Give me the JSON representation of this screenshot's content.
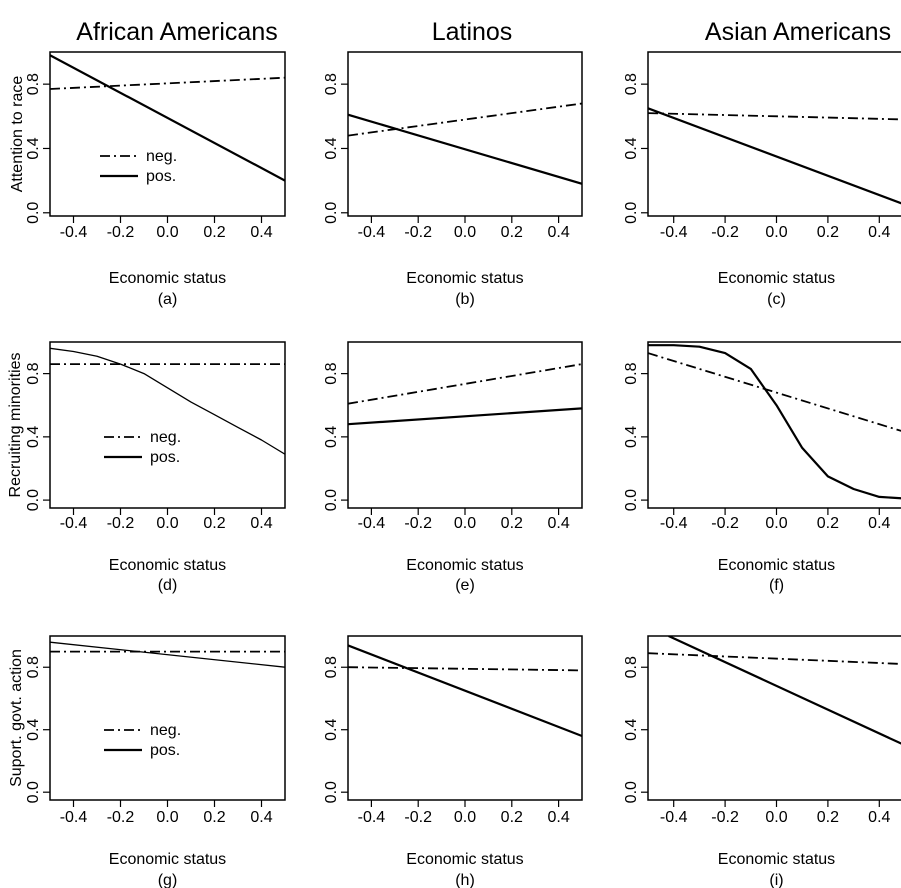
{
  "column_titles": [
    "African Americans",
    "Latinos",
    "Asian Americans"
  ],
  "row_ylabels": [
    "Attention to race",
    "Recruiting minorities",
    "Suport. govt. action"
  ],
  "legend": {
    "neg_label": "neg.",
    "pos_label": "pos."
  },
  "colors": {
    "line": "#000000",
    "axis": "#000000",
    "background": "#ffffff"
  },
  "chart_data": [
    {
      "type": "line",
      "panel_label": "(a)",
      "xlabel": "Economic status",
      "ylabel": "Attention to race",
      "xlim": [
        -0.5,
        0.5
      ],
      "ylim": [
        -0.02,
        1.0
      ],
      "xticks": [
        "-0.4",
        "-0.2",
        "0.0",
        "0.2",
        "0.4"
      ],
      "yticks": [
        "0.0",
        "0.4",
        "0.8"
      ],
      "legend": true,
      "series": [
        {
          "name": "neg.",
          "style": "dashdot",
          "x": [
            -0.5,
            0.5
          ],
          "y": [
            0.77,
            0.84
          ]
        },
        {
          "name": "pos.",
          "style": "solid",
          "x": [
            -0.5,
            0.5
          ],
          "y": [
            0.98,
            0.2
          ]
        }
      ]
    },
    {
      "type": "line",
      "panel_label": "(b)",
      "xlabel": "Economic status",
      "ylabel": "",
      "xlim": [
        -0.5,
        0.5
      ],
      "ylim": [
        -0.02,
        1.0
      ],
      "xticks": [
        "-0.4",
        "-0.2",
        "0.0",
        "0.2",
        "0.4"
      ],
      "yticks": [
        "0.0",
        "0.4",
        "0.8"
      ],
      "legend": false,
      "series": [
        {
          "name": "neg.",
          "style": "dashdot",
          "x": [
            -0.5,
            0.5
          ],
          "y": [
            0.48,
            0.68
          ]
        },
        {
          "name": "pos.",
          "style": "solid",
          "x": [
            -0.5,
            0.5
          ],
          "y": [
            0.61,
            0.18
          ]
        }
      ]
    },
    {
      "type": "line",
      "panel_label": "(c)",
      "xlabel": "Economic status",
      "ylabel": "",
      "xlim": [
        -0.5,
        0.5
      ],
      "ylim": [
        -0.02,
        1.0
      ],
      "xticks": [
        "-0.4",
        "-0.2",
        "0.0",
        "0.2",
        "0.4"
      ],
      "yticks": [
        "0.0",
        "0.4",
        "0.8"
      ],
      "legend": false,
      "series": [
        {
          "name": "neg.",
          "style": "dashdot",
          "x": [
            -0.5,
            0.5
          ],
          "y": [
            0.62,
            0.58
          ]
        },
        {
          "name": "pos.",
          "style": "solid",
          "x": [
            -0.5,
            0.5
          ],
          "y": [
            0.65,
            0.05
          ]
        }
      ]
    },
    {
      "type": "line",
      "panel_label": "(d)",
      "xlabel": "Economic status",
      "ylabel": "Recruiting minorities",
      "xlim": [
        -0.5,
        0.5
      ],
      "ylim": [
        -0.05,
        1.0
      ],
      "xticks": [
        "-0.4",
        "-0.2",
        "0.0",
        "0.2",
        "0.4"
      ],
      "yticks": [
        "0.0",
        "0.4",
        "0.8"
      ],
      "legend": true,
      "series": [
        {
          "name": "neg.",
          "style": "dashdot",
          "x": [
            -0.5,
            0.5
          ],
          "y": [
            0.86,
            0.86
          ]
        },
        {
          "name": "pos.",
          "style": "solid-thin",
          "x": [
            -0.5,
            -0.4,
            -0.3,
            -0.2,
            -0.1,
            0.0,
            0.1,
            0.2,
            0.3,
            0.4,
            0.5
          ],
          "y": [
            0.96,
            0.94,
            0.91,
            0.86,
            0.8,
            0.71,
            0.62,
            0.54,
            0.46,
            0.38,
            0.29
          ]
        }
      ]
    },
    {
      "type": "line",
      "panel_label": "(e)",
      "xlabel": "Economic status",
      "ylabel": "",
      "xlim": [
        -0.5,
        0.5
      ],
      "ylim": [
        -0.05,
        1.0
      ],
      "xticks": [
        "-0.4",
        "-0.2",
        "0.0",
        "0.2",
        "0.4"
      ],
      "yticks": [
        "0.0",
        "0.4",
        "0.8"
      ],
      "legend": false,
      "series": [
        {
          "name": "neg.",
          "style": "dashdot",
          "x": [
            -0.5,
            0.5
          ],
          "y": [
            0.61,
            0.86
          ]
        },
        {
          "name": "pos.",
          "style": "solid",
          "x": [
            -0.5,
            0.5
          ],
          "y": [
            0.48,
            0.58
          ]
        }
      ]
    },
    {
      "type": "line",
      "panel_label": "(f)",
      "xlabel": "Economic status",
      "ylabel": "",
      "xlim": [
        -0.5,
        0.5
      ],
      "ylim": [
        -0.05,
        1.0
      ],
      "xticks": [
        "-0.4",
        "-0.2",
        "0.0",
        "0.2",
        "0.4"
      ],
      "yticks": [
        "0.0",
        "0.4",
        "0.8"
      ],
      "legend": false,
      "series": [
        {
          "name": "neg.",
          "style": "dashdot",
          "x": [
            -0.5,
            0.5
          ],
          "y": [
            0.93,
            0.43
          ]
        },
        {
          "name": "pos.",
          "style": "solid",
          "x": [
            -0.5,
            -0.4,
            -0.3,
            -0.2,
            -0.1,
            0.0,
            0.1,
            0.2,
            0.3,
            0.4,
            0.5
          ],
          "y": [
            0.98,
            0.98,
            0.97,
            0.93,
            0.83,
            0.6,
            0.33,
            0.15,
            0.07,
            0.02,
            0.01
          ]
        }
      ]
    },
    {
      "type": "line",
      "panel_label": "(g)",
      "xlabel": "Economic status",
      "ylabel": "Suport. govt. action",
      "xlim": [
        -0.5,
        0.5
      ],
      "ylim": [
        -0.05,
        1.0
      ],
      "xticks": [
        "-0.4",
        "-0.2",
        "0.0",
        "0.2",
        "0.4"
      ],
      "yticks": [
        "0.0",
        "0.4",
        "0.8"
      ],
      "legend": true,
      "series": [
        {
          "name": "neg.",
          "style": "dashdot",
          "x": [
            -0.5,
            0.5
          ],
          "y": [
            0.9,
            0.9
          ]
        },
        {
          "name": "pos.",
          "style": "solid-thin",
          "x": [
            -0.5,
            0.5
          ],
          "y": [
            0.96,
            0.8
          ]
        }
      ]
    },
    {
      "type": "line",
      "panel_label": "(h)",
      "xlabel": "Economic status",
      "ylabel": "",
      "xlim": [
        -0.5,
        0.5
      ],
      "ylim": [
        -0.05,
        1.0
      ],
      "xticks": [
        "-0.4",
        "-0.2",
        "0.0",
        "0.2",
        "0.4"
      ],
      "yticks": [
        "0.0",
        "0.4",
        "0.8"
      ],
      "legend": false,
      "series": [
        {
          "name": "neg.",
          "style": "dashdot",
          "x": [
            -0.5,
            0.5
          ],
          "y": [
            0.8,
            0.78
          ]
        },
        {
          "name": "pos.",
          "style": "solid",
          "x": [
            -0.5,
            0.5
          ],
          "y": [
            0.94,
            0.36
          ]
        }
      ]
    },
    {
      "type": "line",
      "panel_label": "(i)",
      "xlabel": "Economic status",
      "ylabel": "",
      "xlim": [
        -0.5,
        0.5
      ],
      "ylim": [
        -0.05,
        1.0
      ],
      "xticks": [
        "-0.4",
        "-0.2",
        "0.0",
        "0.2",
        "0.4"
      ],
      "yticks": [
        "0.0",
        "0.4",
        "0.8"
      ],
      "legend": false,
      "series": [
        {
          "name": "neg.",
          "style": "dashdot",
          "x": [
            -0.5,
            0.5
          ],
          "y": [
            0.89,
            0.82
          ]
        },
        {
          "name": "pos.",
          "style": "solid",
          "x": [
            -0.42,
            0.5
          ],
          "y": [
            1.0,
            0.3
          ]
        }
      ]
    }
  ]
}
